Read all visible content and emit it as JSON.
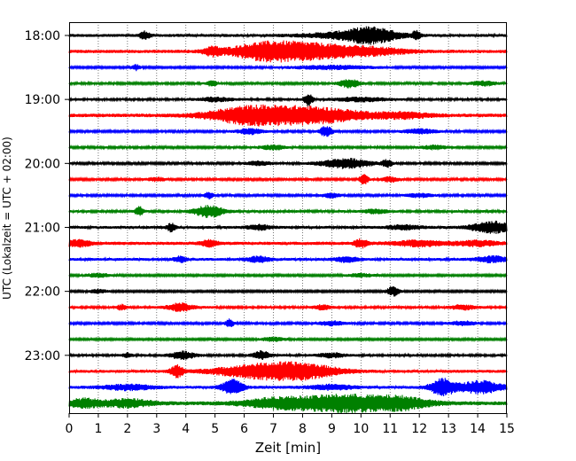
{
  "chart_data": {
    "type": "line",
    "title": "",
    "xlabel": "Zeit  [min]",
    "ylabel": "UTC (Lokalzeit = UTC + 02:00)",
    "xlim": [
      0,
      15
    ],
    "x_ticks": [
      "0",
      "1",
      "2",
      "3",
      "4",
      "5",
      "6",
      "7",
      "8",
      "9",
      "10",
      "11",
      "12",
      "13",
      "14",
      "15"
    ],
    "y_ticks": [
      "18:00",
      "19:00",
      "20:00",
      "21:00",
      "22:00",
      "23:00"
    ],
    "grid": "vertical dotted",
    "trace_interval_min": 15,
    "start_time": "18:00",
    "colors": [
      "#000000",
      "#ff0000",
      "#0000ff",
      "#008000"
    ],
    "traces": [
      {
        "time": "18:00",
        "color": "#000000",
        "noise": 1.2,
        "bursts": [
          [
            2.6,
            2.2,
            0.12
          ],
          [
            10.4,
            3.5,
            0.6
          ],
          [
            11.9,
            2.5,
            0.1
          ],
          [
            9.5,
            1.5,
            1.0
          ]
        ]
      },
      {
        "time": "18:15",
        "color": "#ff0000",
        "noise": 1.3,
        "bursts": [
          [
            8.0,
            4.5,
            1.3
          ],
          [
            6.5,
            2.5,
            0.8
          ],
          [
            4.9,
            2.0,
            0.2
          ],
          [
            10.5,
            1.5,
            0.8
          ]
        ]
      },
      {
        "time": "18:30",
        "color": "#0000ff",
        "noise": 0.8,
        "bursts": [
          [
            2.3,
            1.5,
            0.1
          ],
          [
            9.0,
            1.0,
            1.0
          ]
        ]
      },
      {
        "time": "18:45",
        "color": "#008000",
        "noise": 0.9,
        "bursts": [
          [
            4.9,
            1.8,
            0.1
          ],
          [
            9.6,
            2.2,
            0.25
          ],
          [
            14.2,
            1.2,
            0.3
          ]
        ]
      },
      {
        "time": "19:00",
        "color": "#000000",
        "noise": 1.0,
        "bursts": [
          [
            8.2,
            3.5,
            0.1
          ],
          [
            5.0,
            1.0,
            0.4
          ],
          [
            10.0,
            1.0,
            0.6
          ]
        ]
      },
      {
        "time": "19:15",
        "color": "#ff0000",
        "noise": 1.4,
        "bursts": [
          [
            8.0,
            4.5,
            1.5
          ],
          [
            6.0,
            3.0,
            0.9
          ],
          [
            11.5,
            1.3,
            0.6
          ]
        ]
      },
      {
        "time": "19:30",
        "color": "#0000ff",
        "noise": 0.9,
        "bursts": [
          [
            8.8,
            3.0,
            0.15
          ],
          [
            6.2,
            1.5,
            0.3
          ],
          [
            12.0,
            1.2,
            0.4
          ]
        ]
      },
      {
        "time": "19:45",
        "color": "#008000",
        "noise": 0.9,
        "bursts": [
          [
            7.0,
            1.2,
            0.3
          ],
          [
            12.5,
            1.0,
            0.3
          ]
        ]
      },
      {
        "time": "20:00",
        "color": "#000000",
        "noise": 0.9,
        "bursts": [
          [
            9.5,
            2.6,
            0.6
          ],
          [
            10.9,
            2.0,
            0.12
          ],
          [
            6.5,
            1.0,
            0.3
          ]
        ]
      },
      {
        "time": "20:15",
        "color": "#ff0000",
        "noise": 0.9,
        "bursts": [
          [
            10.1,
            3.0,
            0.1
          ],
          [
            11.0,
            1.3,
            0.2
          ],
          [
            3.0,
            1.0,
            0.2
          ]
        ]
      },
      {
        "time": "20:30",
        "color": "#0000ff",
        "noise": 0.9,
        "bursts": [
          [
            4.8,
            1.8,
            0.1
          ],
          [
            9.0,
            1.2,
            0.2
          ],
          [
            12.0,
            1.0,
            0.3
          ]
        ]
      },
      {
        "time": "20:45",
        "color": "#008000",
        "noise": 1.0,
        "bursts": [
          [
            4.8,
            3.3,
            0.35
          ],
          [
            2.4,
            2.5,
            0.1
          ],
          [
            10.5,
            1.0,
            0.3
          ]
        ]
      },
      {
        "time": "21:00",
        "color": "#000000",
        "noise": 1.1,
        "bursts": [
          [
            14.5,
            3.2,
            0.5
          ],
          [
            3.5,
            2.2,
            0.1
          ],
          [
            6.5,
            1.3,
            0.3
          ],
          [
            11.5,
            1.2,
            0.4
          ]
        ]
      },
      {
        "time": "21:15",
        "color": "#ff0000",
        "noise": 1.3,
        "bursts": [
          [
            0.3,
            1.8,
            0.3
          ],
          [
            4.8,
            1.6,
            0.2
          ],
          [
            10.0,
            2.2,
            0.15
          ],
          [
            12.0,
            1.5,
            0.6
          ],
          [
            14.0,
            1.3,
            0.5
          ]
        ]
      },
      {
        "time": "21:30",
        "color": "#0000ff",
        "noise": 1.1,
        "bursts": [
          [
            3.8,
            1.6,
            0.15
          ],
          [
            6.5,
            1.4,
            0.3
          ],
          [
            9.5,
            1.3,
            0.3
          ],
          [
            14.5,
            1.6,
            0.4
          ]
        ]
      },
      {
        "time": "21:45",
        "color": "#008000",
        "noise": 0.8,
        "bursts": [
          [
            1.0,
            1.0,
            0.3
          ],
          [
            10.0,
            1.0,
            0.3
          ]
        ]
      },
      {
        "time": "22:00",
        "color": "#000000",
        "noise": 0.8,
        "bursts": [
          [
            11.1,
            2.6,
            0.15
          ],
          [
            1.0,
            1.0,
            0.2
          ]
        ]
      },
      {
        "time": "22:15",
        "color": "#ff0000",
        "noise": 1.0,
        "bursts": [
          [
            3.8,
            2.2,
            0.3
          ],
          [
            1.8,
            1.4,
            0.1
          ],
          [
            8.7,
            1.3,
            0.2
          ],
          [
            13.5,
            1.2,
            0.3
          ]
        ]
      },
      {
        "time": "22:30",
        "color": "#0000ff",
        "noise": 0.9,
        "bursts": [
          [
            5.5,
            2.2,
            0.1
          ],
          [
            9.0,
            1.2,
            0.3
          ],
          [
            13.5,
            1.2,
            0.3
          ]
        ]
      },
      {
        "time": "22:45",
        "color": "#008000",
        "noise": 0.8,
        "bursts": [
          [
            7.0,
            1.0,
            0.3
          ]
        ]
      },
      {
        "time": "23:00",
        "color": "#000000",
        "noise": 1.0,
        "bursts": [
          [
            3.9,
            2.0,
            0.3
          ],
          [
            6.6,
            2.2,
            0.2
          ],
          [
            2.0,
            1.2,
            0.1
          ],
          [
            9.0,
            1.2,
            0.3
          ]
        ]
      },
      {
        "time": "23:15",
        "color": "#ff0000",
        "noise": 1.2,
        "bursts": [
          [
            6.8,
            4.0,
            1.2
          ],
          [
            3.7,
            3.2,
            0.15
          ],
          [
            8.2,
            2.2,
            0.8
          ]
        ]
      },
      {
        "time": "23:30",
        "color": "#0000ff",
        "noise": 1.2,
        "bursts": [
          [
            5.6,
            4.2,
            0.25
          ],
          [
            12.8,
            4.5,
            0.3
          ],
          [
            14.1,
            3.5,
            0.5
          ],
          [
            2.0,
            1.4,
            0.6
          ],
          [
            9.0,
            1.3,
            0.5
          ]
        ]
      },
      {
        "time": "23:45",
        "color": "#008000",
        "noise": 1.5,
        "bursts": [
          [
            9.5,
            4.5,
            1.4
          ],
          [
            0.5,
            2.2,
            0.4
          ],
          [
            2.0,
            2.0,
            0.6
          ],
          [
            7.0,
            2.0,
            0.8
          ],
          [
            11.5,
            2.0,
            0.6
          ]
        ]
      }
    ]
  }
}
